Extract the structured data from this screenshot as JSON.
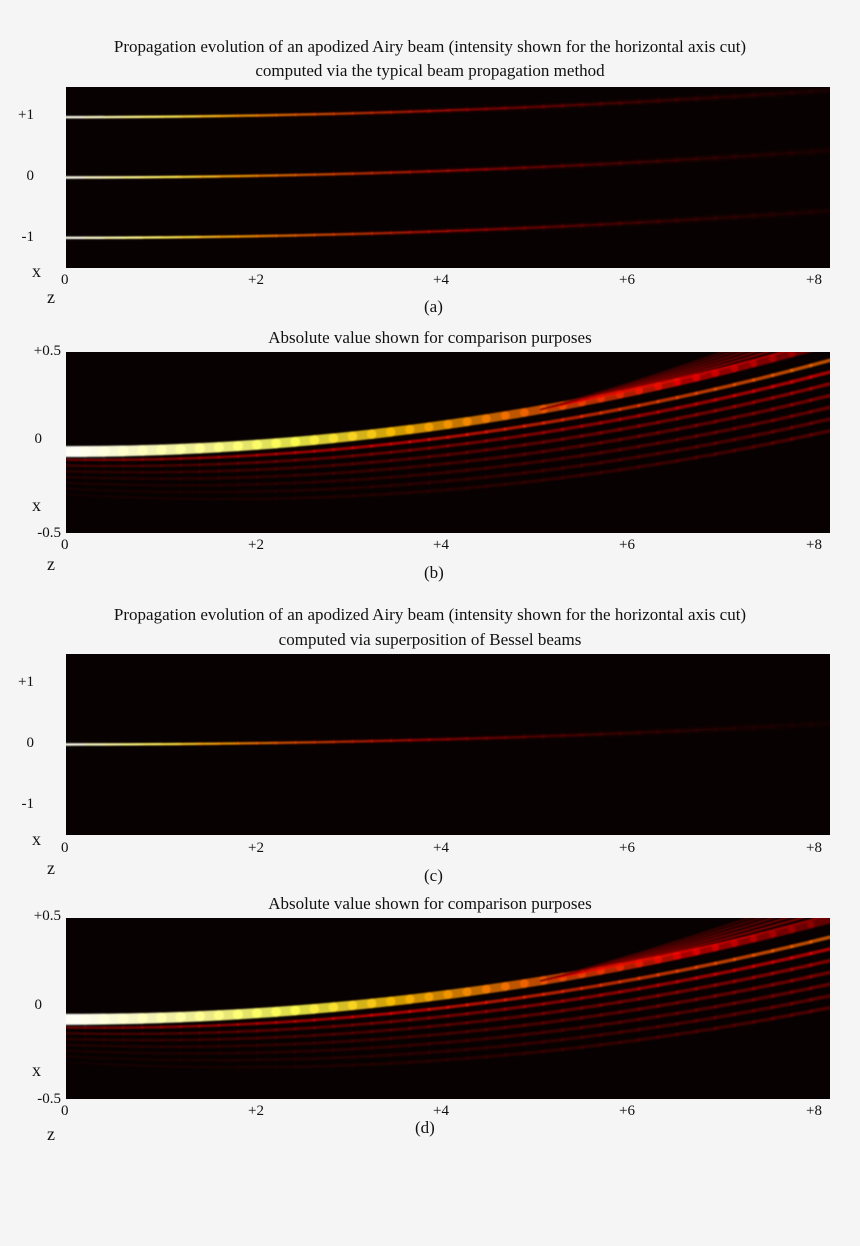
{
  "colors": {
    "page_background": "#f5f5f5",
    "plot_background": "#080101",
    "colormap": "hot"
  },
  "chart_data": [
    {
      "type": "heatmap",
      "title": [
        "Propagation evolution of an apodized Airy beam (intensity shown for the horizontal axis cut)",
        "computed via the typical beam propagation method"
      ],
      "xlabel": "z",
      "ylabel": "x",
      "xlim": [
        0,
        8
      ],
      "ylim": [
        -1.5,
        1.5
      ],
      "x_ticks": [
        "0",
        "+2",
        "+4",
        "+6",
        "+8"
      ],
      "y_ticks": [
        "+1",
        "0",
        "-1"
      ],
      "y_tick_values": [
        1,
        0,
        -1
      ],
      "caption": "(a)",
      "quantity": "intensity",
      "beams": [
        {
          "x0": 1,
          "deflection_at_z8": 0.45,
          "peak_intensity": 1.0,
          "decay_length": 4.5
        },
        {
          "x0": 0,
          "deflection_at_z8": 0.45,
          "peak_intensity": 1.0,
          "decay_length": 4.5
        },
        {
          "x0": -1,
          "deflection_at_z8": 0.45,
          "peak_intensity": 1.0,
          "decay_length": 4.5
        }
      ]
    },
    {
      "type": "heatmap",
      "title": "Absolute value shown for comparison purposes",
      "xlabel": "z",
      "ylabel": "x",
      "xlim": [
        0,
        8
      ],
      "ylim": [
        -0.5,
        0.5
      ],
      "x_ticks": [
        "0",
        "+2",
        "+4",
        "+6",
        "+8"
      ],
      "y_ticks": [
        "+0.5",
        "0",
        "-0.5"
      ],
      "y_tick_values": [
        0.5,
        0,
        -0.5
      ],
      "caption": "(b)",
      "quantity": "absolute value",
      "main_lobe_x0": -0.05,
      "main_lobe_deflection_at_z8": 0.6,
      "side_lobe_count": 7
    },
    {
      "type": "heatmap",
      "title": [
        "Propagation evolution of an apodized Airy beam (intensity shown for the horizontal axis cut)",
        "computed via superposition of Bessel beams"
      ],
      "xlabel": "z",
      "ylabel": "x",
      "xlim": [
        0,
        8
      ],
      "ylim": [
        -1.5,
        1.5
      ],
      "x_ticks": [
        "0",
        "+2",
        "+4",
        "+6",
        "+8"
      ],
      "y_ticks": [
        "+1",
        "0",
        "-1"
      ],
      "y_tick_values": [
        1,
        0,
        -1
      ],
      "caption": "(c)",
      "quantity": "intensity",
      "beams": [
        {
          "x0": 0,
          "deflection_at_z8": 0.35,
          "peak_intensity": 1.0,
          "decay_length": 4.0
        }
      ]
    },
    {
      "type": "heatmap",
      "title": "Absolute value shown for comparison purposes",
      "xlabel": "z",
      "ylabel": "x",
      "xlim": [
        0,
        8
      ],
      "ylim": [
        -0.5,
        0.5
      ],
      "x_ticks": [
        "0",
        "+2",
        "+4",
        "+6",
        "+8"
      ],
      "y_ticks": [
        "+0.5",
        "0",
        "-0.5"
      ],
      "y_tick_values": [
        0.5,
        0,
        -0.5
      ],
      "caption": "(d)",
      "quantity": "absolute value",
      "main_lobe_x0": -0.06,
      "main_lobe_deflection_at_z8": 0.55,
      "side_lobe_count": 7
    }
  ]
}
